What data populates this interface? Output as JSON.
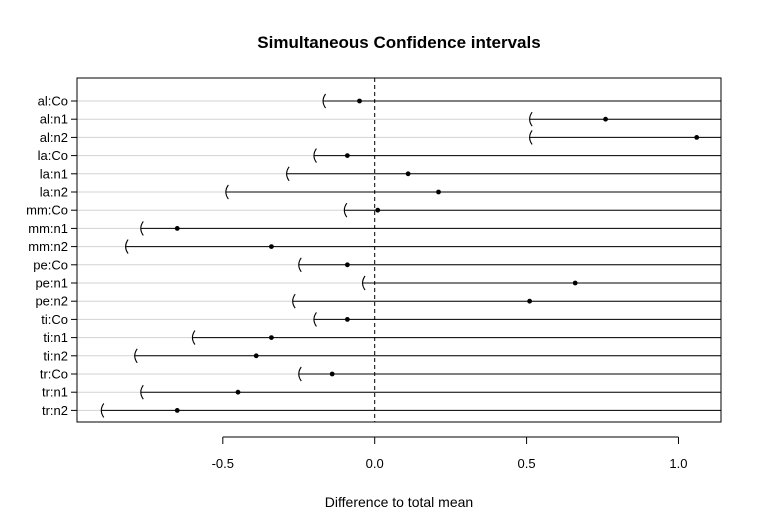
{
  "chart_data": {
    "type": "interval",
    "title": "Simultaneous Confidence intervals",
    "xlabel": "Difference to total mean",
    "ylabel": "",
    "xlim": [
      -0.98,
      1.14
    ],
    "xticks": [
      -0.5,
      0.0,
      0.5,
      1.0
    ],
    "xtick_labels": [
      "-0.5",
      "0.0",
      "0.5",
      "1.0"
    ],
    "reference_line": 0.0,
    "upper_bound": "Inf",
    "categories": [
      "al:Co",
      "al:n1",
      "al:n2",
      "la:Co",
      "la:n1",
      "la:n2",
      "mm:Co",
      "mm:n1",
      "mm:n2",
      "pe:Co",
      "pe:n1",
      "pe:n2",
      "ti:Co",
      "ti:n1",
      "ti:n2",
      "tr:Co",
      "tr:n1",
      "tr:n2"
    ],
    "estimates": [
      -0.05,
      0.76,
      1.06,
      -0.09,
      0.11,
      0.21,
      0.01,
      -0.65,
      -0.34,
      -0.09,
      0.66,
      0.51,
      -0.09,
      -0.34,
      -0.39,
      -0.14,
      -0.45,
      -0.65
    ],
    "lower": [
      -0.17,
      0.51,
      0.51,
      -0.2,
      -0.29,
      -0.49,
      -0.1,
      -0.77,
      -0.82,
      -0.25,
      -0.04,
      -0.27,
      -0.2,
      -0.6,
      -0.79,
      -0.25,
      -0.77,
      -0.9
    ]
  }
}
